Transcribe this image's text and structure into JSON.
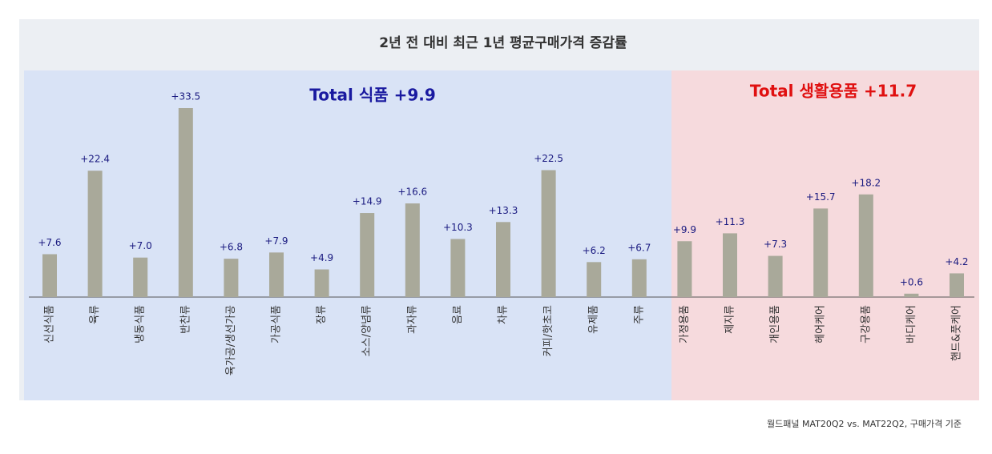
{
  "chart_data": {
    "type": "bar",
    "title": "2년 전 대비 최근 1년 평균구매가격 증감률",
    "categories": [
      "신선식품",
      "육류",
      "냉동식품",
      "반찬류",
      "육가공/생선가공",
      "가공식품",
      "장류",
      "소스/양념류",
      "과자류",
      "음료",
      "차류",
      "커피/핫초코",
      "유제품",
      "주류",
      "가정용품",
      "제지류",
      "개인용품",
      "헤어케어",
      "구강용품",
      "바디케어",
      "핸드&풋케어"
    ],
    "values": [
      7.6,
      22.4,
      7.0,
      33.5,
      6.8,
      7.9,
      4.9,
      14.9,
      16.6,
      10.3,
      13.3,
      22.5,
      6.2,
      6.7,
      9.9,
      11.3,
      7.3,
      15.7,
      18.2,
      0.6,
      4.2
    ],
    "value_labels": [
      "+7.6",
      "+22.4",
      "+7.0",
      "+33.5",
      "+6.8",
      "+7.9",
      "+4.9",
      "+14.9",
      "+16.6",
      "+10.3",
      "+13.3",
      "+22.5",
      "+6.2",
      "+6.7",
      "+9.9",
      "+11.3",
      "+7.3",
      "+15.7",
      "+18.2",
      "+0.6",
      "+4.2"
    ],
    "color": "#a9a99a",
    "annotations": [
      {
        "text": "Total 식품 +9.9",
        "color": "#1a1aa0"
      },
      {
        "text": "Total 생활용품 +11.7",
        "color": "#e01010"
      }
    ],
    "footnote": "월드패널 MAT20Q2 vs. MAT22Q2, 구매가격 기준"
  }
}
